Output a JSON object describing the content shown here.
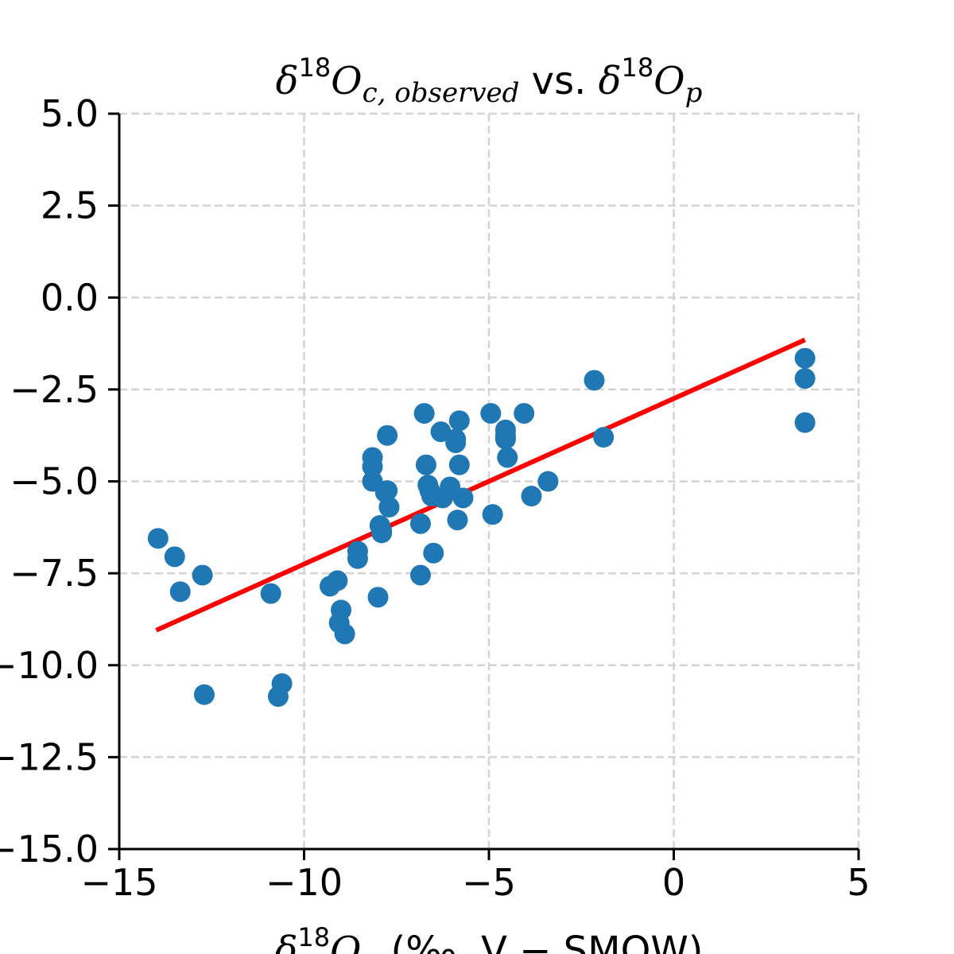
{
  "chart_data": {
    "type": "scatter",
    "title": {
      "base": "δ",
      "sup": "18",
      "main": "O",
      "sub": "c, observed",
      "mid": " vs. ",
      "base2": "δ",
      "sup2": "18",
      "main2": "O",
      "sub2": "p"
    },
    "xlabel": {
      "base": "δ",
      "sup": "18",
      "main": "O",
      "sub": "p",
      "rest": " (‰, V − SMOW)"
    },
    "ylabel": "",
    "xlim": [
      -15,
      5
    ],
    "ylim": [
      -15,
      5
    ],
    "xticks": [
      -15,
      -10,
      -5,
      0,
      5
    ],
    "xtick_labels": [
      "−15",
      "−10",
      "−5",
      "0",
      "5"
    ],
    "yticks": [
      5,
      2.5,
      0,
      -2.5,
      -5,
      -7.5,
      -10,
      -12.5,
      -15
    ],
    "ytick_labels": [
      "5.0",
      "2.5",
      "0.0",
      "−2.5",
      "−5.0",
      "−7.5",
      "−10.0",
      "−12.5",
      "−15.0"
    ],
    "grid": true,
    "colors": {
      "points": "#1f77b4",
      "fit_line": "#ff0000",
      "grid": "#d3d3d3",
      "axis": "#000000"
    },
    "series": [
      {
        "kind": "scatter",
        "x": [
          -13.95,
          -13.5,
          -13.35,
          -12.75,
          -12.7,
          -10.9,
          -10.7,
          -10.6,
          -9.3,
          -9.1,
          -9.0,
          -9.05,
          -8.9,
          -8.55,
          -8.55,
          -8.15,
          -8.15,
          -8.15,
          -8.0,
          -7.95,
          -7.9,
          -7.9,
          -7.75,
          -7.75,
          -7.7,
          -7.8,
          -6.75,
          -6.7,
          -6.85,
          -6.85,
          -6.65,
          -6.6,
          -6.55,
          -6.5,
          -6.3,
          -6.25,
          -6.05,
          -5.9,
          -5.85,
          -5.9,
          -5.8,
          -5.8,
          -5.7,
          -4.95,
          -4.9,
          -4.55,
          -4.55,
          -4.55,
          -4.5,
          -4.05,
          -3.85,
          -3.4,
          -2.15,
          -1.9,
          3.55,
          3.55,
          3.55
        ],
        "y": [
          -6.55,
          -7.05,
          -8.0,
          -7.55,
          -10.8,
          -8.05,
          -10.85,
          -10.5,
          -7.85,
          -7.7,
          -8.5,
          -8.85,
          -9.15,
          -6.9,
          -7.1,
          -4.35,
          -4.6,
          -5.0,
          -8.15,
          -6.2,
          -6.35,
          -6.4,
          -3.75,
          -5.25,
          -5.7,
          -5.3,
          -3.15,
          -4.55,
          -7.55,
          -6.15,
          -5.1,
          -5.25,
          -5.4,
          -6.95,
          -3.65,
          -5.45,
          -5.15,
          -3.95,
          -6.05,
          -3.85,
          -3.35,
          -4.55,
          -5.45,
          -3.15,
          -5.9,
          -3.6,
          -3.85,
          -3.75,
          -4.35,
          -3.15,
          -5.4,
          -5.0,
          -2.25,
          -3.8,
          -1.65,
          -2.2,
          -3.4
        ]
      },
      {
        "kind": "line",
        "x": [
          -14.0,
          3.55
        ],
        "y": [
          -9.05,
          -1.15
        ]
      }
    ]
  }
}
